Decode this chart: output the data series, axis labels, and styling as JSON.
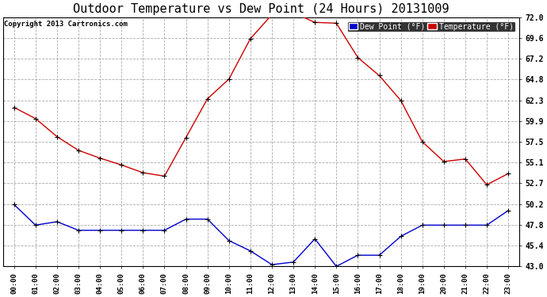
{
  "title": "Outdoor Temperature vs Dew Point (24 Hours) 20131009",
  "copyright": "Copyright 2013 Cartronics.com",
  "hours": [
    "00:00",
    "01:00",
    "02:00",
    "03:00",
    "04:00",
    "05:00",
    "06:00",
    "07:00",
    "08:00",
    "09:00",
    "10:00",
    "11:00",
    "12:00",
    "13:00",
    "14:00",
    "15:00",
    "16:00",
    "17:00",
    "18:00",
    "19:00",
    "20:00",
    "21:00",
    "22:00",
    "23:00"
  ],
  "temperature": [
    61.5,
    60.2,
    58.1,
    56.5,
    55.6,
    54.8,
    53.9,
    53.5,
    58.0,
    62.5,
    64.8,
    69.5,
    72.3,
    72.5,
    71.4,
    71.3,
    67.3,
    65.2,
    62.3,
    57.5,
    55.2,
    55.5,
    52.5,
    53.8
  ],
  "dew_point": [
    50.2,
    47.8,
    48.2,
    47.2,
    47.2,
    47.2,
    47.2,
    47.2,
    48.5,
    48.5,
    46.0,
    44.8,
    43.2,
    43.5,
    46.2,
    43.0,
    44.3,
    44.3,
    46.5,
    47.8,
    47.8,
    47.8,
    47.8,
    49.5
  ],
  "temp_color": "#cc0000",
  "dew_color": "#0000cc",
  "bg_color": "#ffffff",
  "plot_bg": "#ffffff",
  "grid_color": "#aaaaaa",
  "ylim": [
    43.0,
    72.0
  ],
  "yticks": [
    43.0,
    45.4,
    47.8,
    50.2,
    52.7,
    55.1,
    57.5,
    59.9,
    62.3,
    64.8,
    67.2,
    69.6,
    72.0
  ],
  "title_fontsize": 11,
  "legend_dew_label": "Dew Point (°F)",
  "legend_temp_label": "Temperature (°F)",
  "legend_dew_bg": "#0000cc",
  "legend_temp_bg": "#cc0000"
}
